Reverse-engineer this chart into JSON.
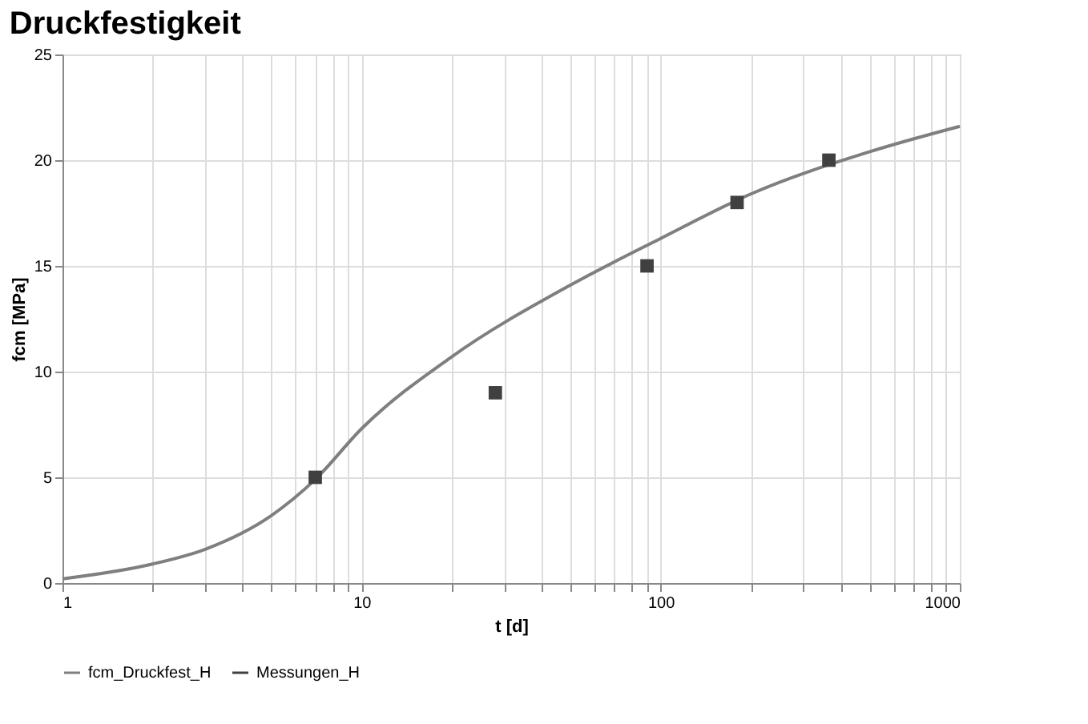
{
  "chart_data": {
    "type": "line",
    "title": "Druckfestigkeit",
    "xlabel": "t [d]",
    "ylabel": "fcm [MPa]",
    "log": "x",
    "grid": true,
    "legend": "bottom",
    "xlim": [
      1,
      1000
    ],
    "ylim": [
      0,
      25
    ],
    "xticks": [
      1,
      {
        "value": 2,
        "label": null
      },
      {
        "value": 3,
        "label": null
      },
      {
        "value": 4,
        "label": null
      },
      {
        "value": 5,
        "label": null
      },
      {
        "value": 6,
        "label": null
      },
      {
        "value": 7,
        "label": null
      },
      {
        "value": 8,
        "label": null
      },
      {
        "value": 9,
        "label": null
      },
      10,
      {
        "value": 20,
        "label": null
      },
      {
        "value": 30,
        "label": null
      },
      {
        "value": 40,
        "label": null
      },
      {
        "value": 50,
        "label": null
      },
      {
        "value": 60,
        "label": null
      },
      {
        "value": 70,
        "label": null
      },
      {
        "value": 80,
        "label": null
      },
      {
        "value": 90,
        "label": null
      },
      100,
      {
        "value": 200,
        "label": null
      },
      {
        "value": 300,
        "label": null
      },
      {
        "value": 400,
        "label": null
      },
      {
        "value": 500,
        "label": null
      },
      {
        "value": 600,
        "label": null
      },
      {
        "value": 700,
        "label": null
      },
      {
        "value": 800,
        "label": null
      },
      {
        "value": 900,
        "label": null
      },
      1000
    ],
    "yticks": [
      0,
      5,
      10,
      15,
      20,
      25
    ],
    "series": [
      {
        "name": "fcm_Druckfest_H",
        "color": "#7f7f7f",
        "marker": "none",
        "x": [
          1,
          2,
          3,
          5,
          7,
          10,
          20,
          50,
          100,
          200,
          500,
          1000
        ],
        "values": [
          0.2,
          0.9,
          1.6,
          3.2,
          4.9,
          7.3,
          10.7,
          14.1,
          16.3,
          18.4,
          20.4,
          21.6
        ]
      },
      {
        "name": "Messungen_H",
        "type": "scatter",
        "color": "#404040",
        "marker": "square",
        "x": [
          7,
          28,
          90,
          180,
          365
        ],
        "values": [
          5.0,
          9.0,
          15.0,
          18.0,
          20.0
        ]
      }
    ]
  }
}
